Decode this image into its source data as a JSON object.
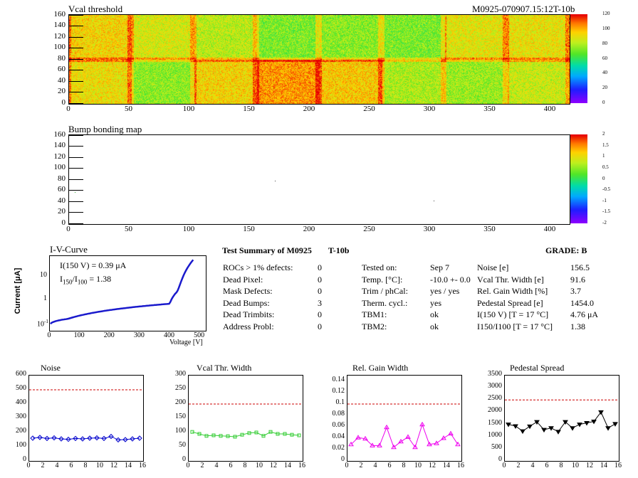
{
  "module_id": "M0925-070907.15:12T-10b",
  "map1": {
    "title": "Vcal threshold",
    "y_ticks": [
      "0",
      "20",
      "40",
      "60",
      "80",
      "100",
      "120",
      "140",
      "160"
    ],
    "x_ticks": [
      "0",
      "50",
      "100",
      "150",
      "200",
      "250",
      "300",
      "350",
      "400"
    ],
    "scale_ticks": [
      "0",
      "20",
      "40",
      "60",
      "80",
      "100",
      "120"
    ]
  },
  "map2": {
    "title": "Bump bonding map",
    "y_ticks": [
      "0",
      "20",
      "40",
      "60",
      "80",
      "100",
      "120",
      "140",
      "160"
    ],
    "x_ticks": [
      "0",
      "50",
      "100",
      "150",
      "200",
      "250",
      "300",
      "350",
      "400"
    ],
    "scale_ticks": [
      "-2",
      "-1.5",
      "-1",
      "-0.5",
      "0",
      "0.5",
      "1",
      "1.5",
      "2"
    ]
  },
  "iv": {
    "title": "I-V-Curve",
    "line1": "I(150 V) = 0.39 μA",
    "line2_prefix": "I",
    "line2_sub1": "150",
    "line2_mid": "/I",
    "line2_sub2": "100",
    "line2_value": "=  1.38",
    "ylabel": "Current [μA]",
    "xlabel": "Voltage [V]",
    "y_ticks": [
      "10",
      "1",
      "10"
    ],
    "y_ticks_exp": [
      "",
      "",
      "-1"
    ],
    "x_ticks": [
      "0",
      "100",
      "200",
      "300",
      "400",
      "500"
    ]
  },
  "summary": {
    "title": "Test Summary of M0925",
    "module_type": "T-10b",
    "grade_label": "GRADE:  B",
    "defects": [
      {
        "label": "ROCs > 1% defects:",
        "value": "0"
      },
      {
        "label": "Dead Pixel:",
        "value": "0"
      },
      {
        "label": "Mask Defects:",
        "value": "0"
      },
      {
        "label": "Dead Bumps:",
        "value": "3"
      },
      {
        "label": "Dead Trimbits:",
        "value": "0"
      },
      {
        "label": "Address Probl:",
        "value": "0"
      }
    ],
    "conditions": [
      {
        "label": "Tested on:",
        "value": "Sep 7"
      },
      {
        "label": "Temp. [°C]:",
        "value": "-10.0 +- 0.0"
      },
      {
        "label": "Trim / phCal:",
        "value": "yes / yes"
      },
      {
        "label": "Therm. cycl.:",
        "value": "yes"
      },
      {
        "label": "TBM1:",
        "value": "ok"
      },
      {
        "label": "TBM2:",
        "value": "ok"
      }
    ],
    "results": [
      {
        "label": "Noise [e]",
        "value": "156.5"
      },
      {
        "label": "Vcal Thr. Width [e]",
        "value": "91.6"
      },
      {
        "label": "Rel. Gain Width [%]",
        "value": "3.7"
      },
      {
        "label": "Pedestal Spread [e]",
        "value": "1454.0"
      },
      {
        "label": "I(150 V)  [T = 17 °C]",
        "value": "4.76 μA"
      },
      {
        "label": "I150/I100   [T = 17 °C]",
        "value": "1.38"
      }
    ]
  },
  "chart_data": [
    {
      "type": "line",
      "title": "Noise",
      "x": [
        0,
        1,
        2,
        3,
        4,
        5,
        6,
        7,
        8,
        9,
        10,
        11,
        12,
        13,
        14,
        15
      ],
      "values": [
        160,
        165,
        158,
        162,
        155,
        152,
        158,
        155,
        160,
        162,
        158,
        172,
        148,
        150,
        155,
        160
      ],
      "threshold": 500,
      "ylim": [
        0,
        600
      ],
      "y_ticks": [
        "0",
        "100",
        "200",
        "300",
        "400",
        "500",
        "600"
      ],
      "xlim": [
        0,
        16
      ],
      "x_ticks": [
        "0",
        "2",
        "4",
        "6",
        "8",
        "10",
        "12",
        "14",
        "16"
      ],
      "color": "#0000cc",
      "marker": "diamond"
    },
    {
      "type": "line",
      "title": "Vcal Thr. Width",
      "x": [
        0,
        1,
        2,
        3,
        4,
        5,
        6,
        7,
        8,
        9,
        10,
        11,
        12,
        13,
        14,
        15
      ],
      "values": [
        102,
        95,
        88,
        90,
        88,
        87,
        85,
        92,
        98,
        100,
        88,
        102,
        95,
        95,
        92,
        90
      ],
      "threshold": 200,
      "ylim": [
        0,
        300
      ],
      "y_ticks": [
        "0",
        "50",
        "100",
        "150",
        "200",
        "250",
        "300"
      ],
      "xlim": [
        0,
        16
      ],
      "x_ticks": [
        "0",
        "2",
        "4",
        "6",
        "8",
        "10",
        "12",
        "14",
        "16"
      ],
      "color": "#33cc33",
      "marker": "square"
    },
    {
      "type": "line",
      "title": "Rel. Gain Width",
      "x": [
        0,
        1,
        2,
        3,
        4,
        5,
        6,
        7,
        8,
        9,
        10,
        11,
        12,
        13,
        14,
        15
      ],
      "values": [
        0.029,
        0.041,
        0.039,
        0.027,
        0.027,
        0.059,
        0.024,
        0.034,
        0.042,
        0.024,
        0.064,
        0.029,
        0.031,
        0.04,
        0.048,
        0.029
      ],
      "threshold": 0.1,
      "ylim": [
        0,
        0.15
      ],
      "y_ticks": [
        "0",
        "0.02",
        "0.04",
        "0.06",
        "0.08",
        "0.1",
        "0.12",
        "0.14"
      ],
      "xlim": [
        0,
        16
      ],
      "x_ticks": [
        "0",
        "2",
        "4",
        "6",
        "8",
        "10",
        "12",
        "14",
        "16"
      ],
      "color": "#ee00ee",
      "marker": "triangle"
    },
    {
      "type": "line",
      "title": "Pedestal Spread",
      "x": [
        0,
        1,
        2,
        3,
        4,
        5,
        6,
        7,
        8,
        9,
        10,
        11,
        12,
        13,
        14,
        15
      ],
      "values": [
        1500,
        1430,
        1220,
        1420,
        1600,
        1280,
        1350,
        1200,
        1600,
        1350,
        1500,
        1560,
        1620,
        2000,
        1350,
        1520
      ],
      "threshold": 2500,
      "ylim": [
        0,
        3500
      ],
      "y_ticks": [
        "0",
        "500",
        "1000",
        "1500",
        "2000",
        "2500",
        "3000",
        "3500"
      ],
      "xlim": [
        0,
        16
      ],
      "x_ticks": [
        "0",
        "2",
        "4",
        "6",
        "8",
        "10",
        "12",
        "14",
        "16"
      ],
      "color": "#000000",
      "marker": "triangle-down"
    }
  ]
}
